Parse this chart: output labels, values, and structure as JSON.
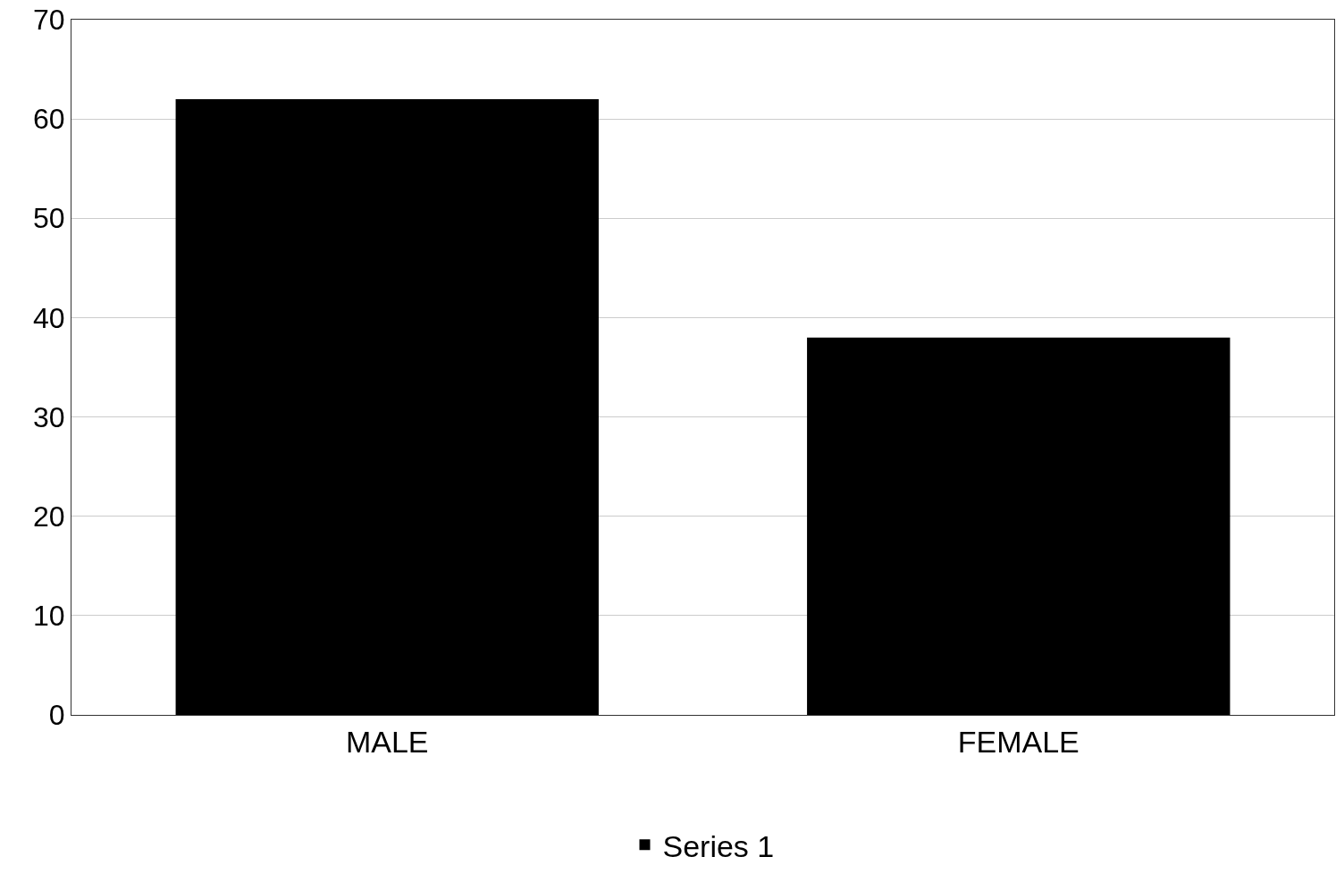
{
  "chart_data": {
    "type": "bar",
    "categories": [
      "MALE",
      "FEMALE"
    ],
    "series": [
      {
        "name": "Series 1",
        "color": "#000000",
        "values": [
          62,
          38
        ]
      }
    ],
    "ylim": [
      0,
      70
    ],
    "yticks": [
      0,
      10,
      20,
      30,
      40,
      50,
      60,
      70
    ],
    "grid": "y",
    "legend": "bottom"
  }
}
